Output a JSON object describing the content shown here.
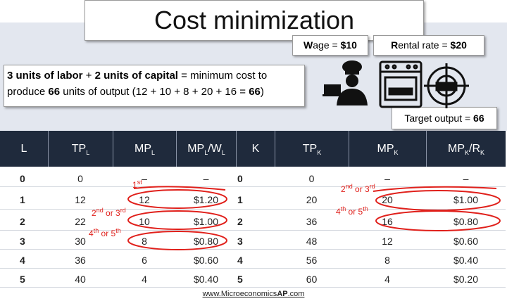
{
  "title": "Cost minimization",
  "wage": [
    "W",
    "age = ",
    "$10"
  ],
  "rental": [
    "R",
    "ental rate = ",
    "$20"
  ],
  "target": [
    "Target output = ",
    "66"
  ],
  "statement": [
    "3 units of labor",
    " + ",
    "2 units of capital",
    " = minimum cost to produce ",
    "66",
    " units of output (12 + 10 + 8 + 20 + 16 = ",
    "66",
    ")"
  ],
  "table": {
    "headers": [
      [
        "L"
      ],
      [
        "TP",
        "L"
      ],
      [
        "MP",
        "L"
      ],
      [
        "MP",
        "L",
        "/W",
        "L"
      ],
      [
        "K"
      ],
      [
        "TP",
        "K"
      ],
      [
        "MP",
        "K"
      ],
      [
        "MP",
        "K",
        "/R",
        "K"
      ]
    ],
    "rows": [
      [
        "0",
        "0",
        "–",
        "–",
        "0",
        "0",
        "–",
        "–"
      ],
      [
        "1",
        "12",
        "12",
        "$1.20",
        "1",
        "20",
        "20",
        "$1.00"
      ],
      [
        "2",
        "22",
        "10",
        "$1.00",
        "2",
        "36",
        "16",
        "$0.80"
      ],
      [
        "3",
        "30",
        "8",
        "$0.80",
        "3",
        "48",
        "12",
        "$0.60"
      ],
      [
        "4",
        "36",
        "6",
        "$0.60",
        "4",
        "56",
        "8",
        "$0.40"
      ],
      [
        "5",
        "40",
        "4",
        "$0.40",
        "5",
        "60",
        "4",
        "$0.20"
      ]
    ]
  },
  "annotations": [
    [
      "1",
      "st"
    ],
    [
      "2",
      "nd",
      " or 3",
      "rd"
    ],
    [
      "4",
      "th",
      " or 5",
      "th"
    ],
    [
      "2",
      "nd",
      " or 3",
      "rd"
    ],
    [
      "4",
      "th",
      " or 5",
      "th"
    ]
  ],
  "footer": [
    "www.Microeconomics",
    "AP",
    ".com"
  ]
}
